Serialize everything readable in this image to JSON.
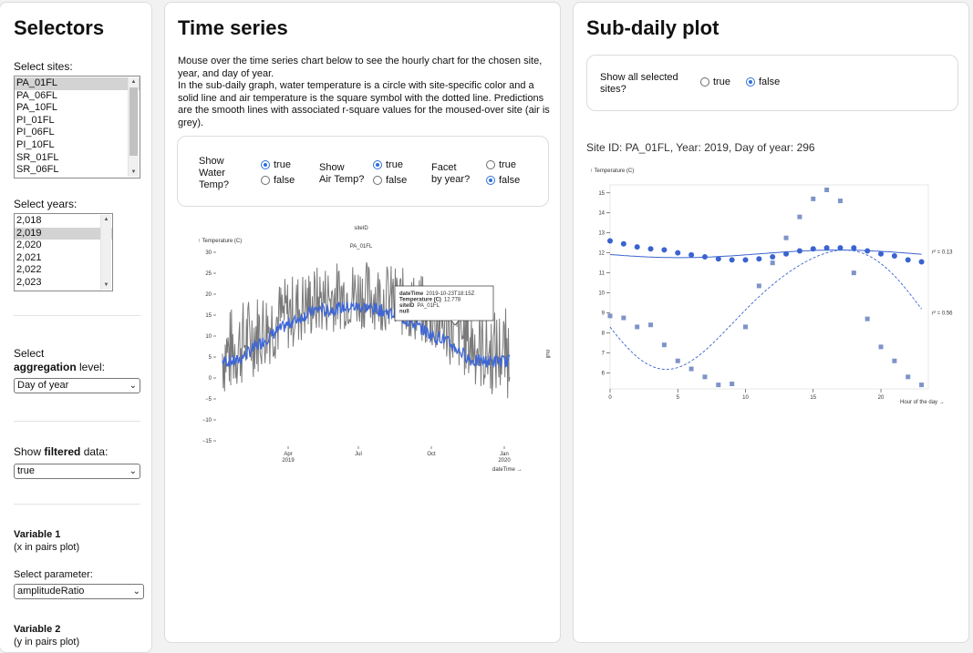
{
  "selectors": {
    "title": "Selectors",
    "sites_label": "Select sites:",
    "sites": [
      "PA_01FL",
      "PA_06FL",
      "PA_10FL",
      "PI_01FL",
      "PI_06FL",
      "PI_10FL",
      "SR_01FL",
      "SR_06FL"
    ],
    "sites_selected": "PA_01FL",
    "years_label": "Select years:",
    "years": [
      "2,018",
      "2,019",
      "2,020",
      "2,021",
      "2,022",
      "2,023"
    ],
    "years_selected": "2,019",
    "agg_label_1": "Select",
    "agg_label_bold": "aggregation",
    "agg_label_2": " level:",
    "agg_value": "Day of year",
    "filtered_label_1": "Show ",
    "filtered_label_bold": "filtered",
    "filtered_label_2": " data:",
    "filtered_value": "true",
    "var1_title": "Variable 1",
    "var1_sub": "(x in pairs plot)",
    "param_label": "Select parameter:",
    "param_value": "amplitudeRatio",
    "var2_title": "Variable 2",
    "var2_sub": "(y in pairs plot)"
  },
  "timeseries": {
    "title": "Time series",
    "desc": "Mouse over the time series chart below to see the hourly chart for the chosen site, year, and day of year.\nIn the sub-daily graph, water temperature is a circle with site-specific color and a solid line and air temperature is the square symbol with the dotted line. Predictions are the smooth lines with associated r-square values for the moused-over site (air is grey).",
    "water_label": "Show\nWater\nTemp?",
    "air_label": "Show\nAir Temp?",
    "facet_label": "Facet\nby year?",
    "true_label": "true",
    "false_label": "false",
    "water_value": "true",
    "air_value": "true",
    "facet_value": "false"
  },
  "ts_chart": {
    "y_label": "↑ Temperature (C)",
    "facet_header": "siteID",
    "facet_value": "PA_01FL",
    "right_label": "null",
    "x_label": "dateTime →",
    "y_ticks": [
      "30",
      "25",
      "20",
      "15",
      "10",
      "5",
      "0",
      "−5",
      "−10",
      "−15"
    ],
    "x_ticks": [
      [
        "Apr",
        "2019"
      ],
      [
        "Jul",
        ""
      ],
      [
        "Oct",
        ""
      ],
      [
        "Jan",
        "2020"
      ]
    ],
    "tooltip": [
      [
        "dateTime",
        "2019-10-23T18:15Z"
      ],
      [
        "Temperature (C)",
        "12.778"
      ],
      [
        "siteID",
        "PA_01FL"
      ],
      [
        "null",
        ""
      ]
    ]
  },
  "subdaily": {
    "title": "Sub-daily plot",
    "show_all_label": "Show all selected\nsites?",
    "true_label": "true",
    "false_label": "false",
    "show_all_value": "false",
    "site_caption": "Site ID: PA_01FL, Year: 2019, Day of year: 296"
  },
  "chart_data": {
    "type": "scatter",
    "title": "",
    "xlabel": "Hour of the day →",
    "ylabel": "↑ Temperature (C)",
    "xlim": [
      0,
      23.5
    ],
    "ylim": [
      5.2,
      15.4
    ],
    "x_ticks": [
      0,
      5,
      10,
      15,
      20
    ],
    "y_ticks": [
      6,
      7,
      8,
      9,
      10,
      11,
      12,
      13,
      14,
      15
    ],
    "series": [
      {
        "name": "",
        "kind": "water",
        "color": "#3a63d0",
        "x": [
          0,
          1,
          2,
          3,
          4,
          5,
          6,
          7,
          8,
          9,
          10,
          11,
          12,
          13,
          14,
          15,
          16,
          17,
          18,
          19,
          20,
          21,
          22,
          23
        ],
        "y": [
          12.6,
          12.45,
          12.3,
          12.2,
          12.15,
          12.0,
          11.9,
          11.8,
          11.7,
          11.65,
          11.65,
          11.7,
          11.8,
          11.95,
          12.1,
          12.2,
          12.25,
          12.25,
          12.25,
          12.1,
          11.95,
          11.85,
          11.65,
          11.55
        ],
        "fit_label": "r² = 0.13"
      },
      {
        "name": "",
        "kind": "air",
        "color": "#7f93c9",
        "x": [
          0,
          1,
          2,
          3,
          4,
          5,
          6,
          7,
          8,
          9,
          10,
          11,
          12,
          13,
          14,
          15,
          16,
          17,
          18,
          19,
          20,
          21,
          22,
          23
        ],
        "y": [
          8.85,
          8.75,
          8.3,
          8.4,
          7.4,
          6.6,
          6.2,
          5.8,
          5.4,
          5.45,
          8.3,
          10.35,
          11.5,
          12.75,
          13.8,
          14.7,
          15.15,
          14.6,
          11.0,
          8.7,
          7.3,
          6.6,
          5.8,
          5.4
        ],
        "fit_label": "r² = 0.56"
      }
    ]
  },
  "colors": {
    "water": "#3a63d0",
    "air_points": "#7f93c9",
    "ts_water": "#3e67d6",
    "ts_air": "#7a7a7a",
    "radio_on": "#2f6fd8"
  }
}
